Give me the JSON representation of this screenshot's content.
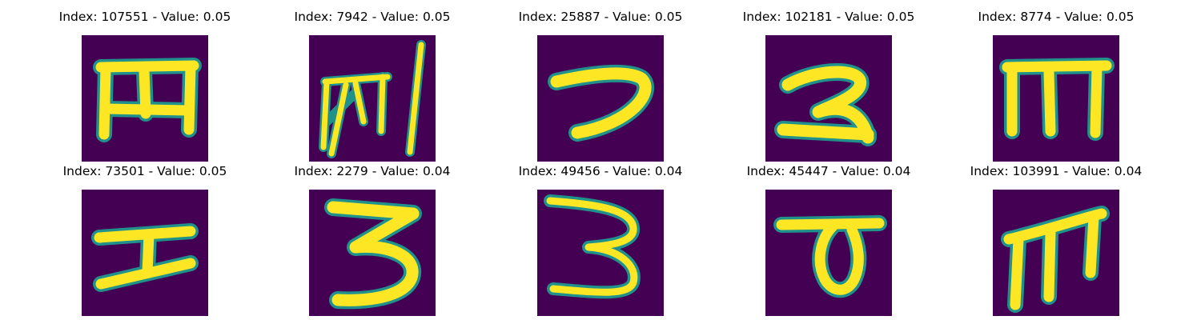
{
  "panels": [
    {
      "title": "Index: 107551 - Value: 0.05",
      "glyph": "ehe"
    },
    {
      "title": "Index: 7942 - Value: 0.05",
      "glyph": "scribble"
    },
    {
      "title": "Index: 25887 - Value: 0.05",
      "glyph": "hook"
    },
    {
      "title": "Index: 102181 - Value: 0.05",
      "glyph": "two"
    },
    {
      "title": "Index: 8774 - Value: 0.05",
      "glyph": "m-bar"
    },
    {
      "title": "Index: 73501 - Value: 0.05",
      "glyph": "i-bar"
    },
    {
      "title": "Index: 2279 - Value: 0.04",
      "glyph": "three-z"
    },
    {
      "title": "Index: 49456 - Value: 0.04",
      "glyph": "three"
    },
    {
      "title": "Index: 45447 - Value: 0.04",
      "glyph": "loop"
    },
    {
      "title": "Index: 103991 - Value: 0.04",
      "glyph": "m-curve"
    }
  ],
  "colors": {
    "background": "#440154",
    "stroke": "#fde725",
    "edge": "#21918c"
  }
}
